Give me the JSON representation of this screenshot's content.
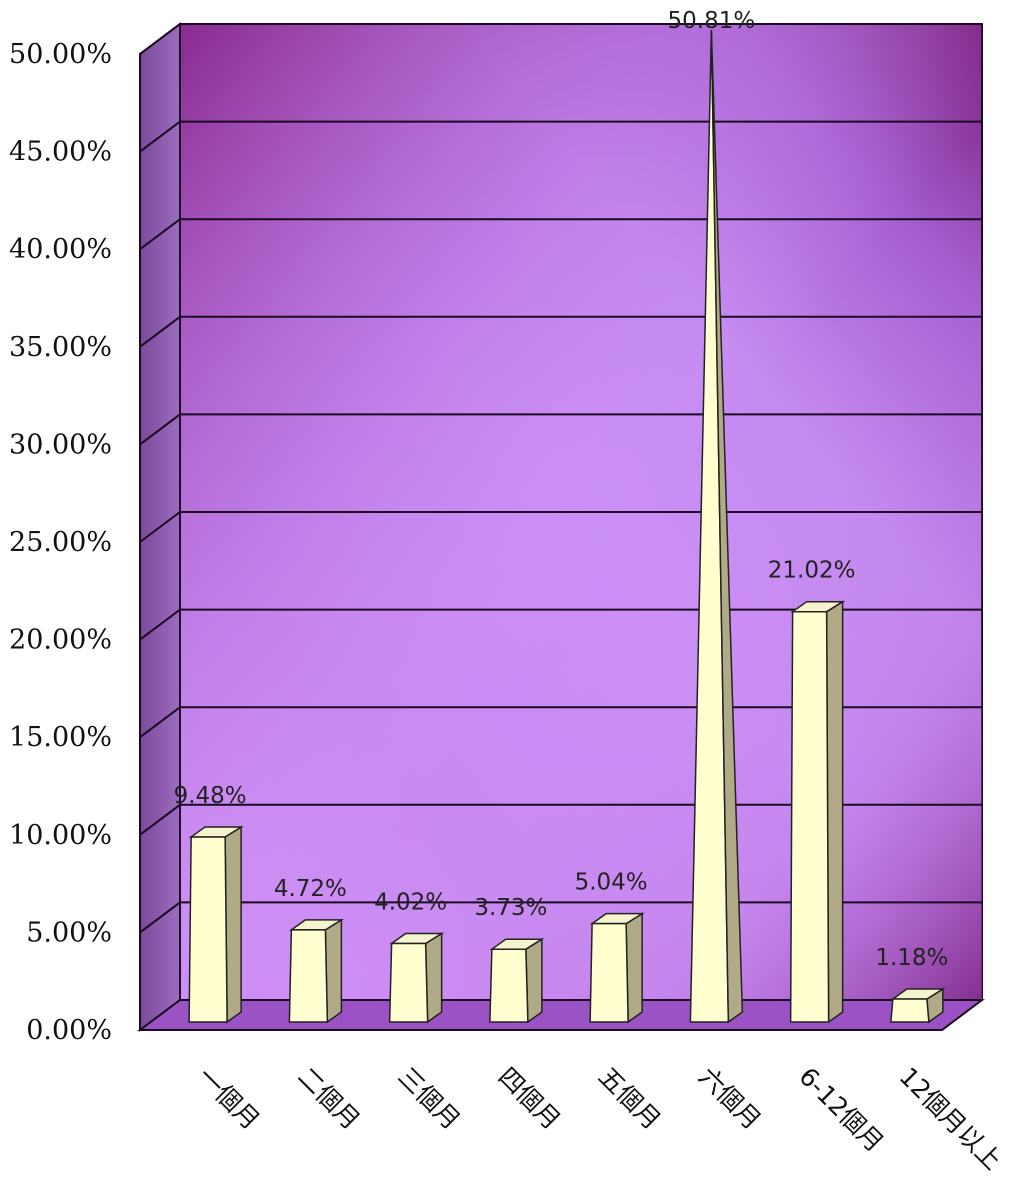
{
  "chart_data": {
    "type": "bar",
    "categories": [
      "一個月",
      "二個月",
      "三個月",
      "四個月",
      "五個月",
      "六個月",
      "6-12個月",
      "12個月以上"
    ],
    "values": [
      9.48,
      4.72,
      4.02,
      3.73,
      5.04,
      50.81,
      21.02,
      1.18
    ],
    "value_labels": [
      "9.48%",
      "4.72%",
      "4.02%",
      "3.73%",
      "5.04%",
      "50.81%",
      "21.02%",
      "1.18%"
    ],
    "y_ticks": [
      "0.00%",
      "5.00%",
      "10.00%",
      "15.00%",
      "20.00%",
      "25.00%",
      "30.00%",
      "35.00%",
      "40.00%",
      "45.00%",
      "50.00%"
    ],
    "ylim": [
      0,
      50
    ],
    "grid": true,
    "legend": "none",
    "title": "",
    "xlabel": "",
    "ylabel": "",
    "colors": {
      "wall_dark": "#7a1f7e",
      "wall_light": "#cf8ff7",
      "side_wall": "#8a4fa6",
      "floor": "#9a52c4",
      "bar_front": "#ffffd0",
      "bar_side": "#b0ab86",
      "grid": "#1a0a22"
    }
  }
}
